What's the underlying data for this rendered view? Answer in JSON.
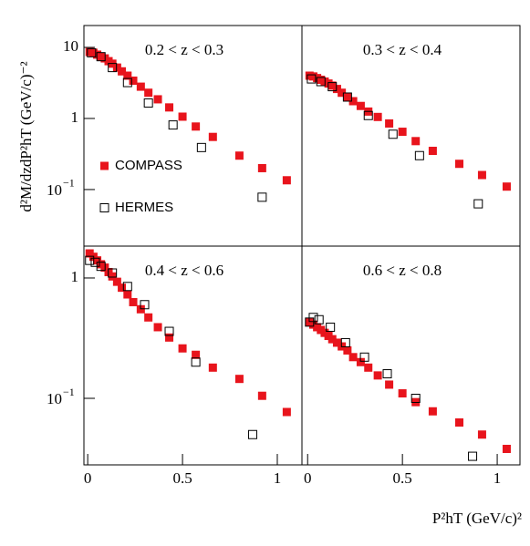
{
  "chart_data": [
    {
      "type": "scatter",
      "label": "0.2 < z < 0.3",
      "ylabel": "d²M/dzdP²hT (GeV/c)⁻²",
      "legend": true,
      "log_y": true,
      "xlim": [
        -0.02,
        1.13
      ],
      "ylim": [
        0.016,
        20.3
      ],
      "yticks": [
        10,
        1,
        {
          "value": 0.1,
          "label": "10",
          "exponent": "−1"
        }
      ],
      "series": [
        {
          "name": "COMPASS",
          "color": "#e8141c",
          "marker": "filled",
          "x": [
            0.01,
            0.03,
            0.05,
            0.07,
            0.09,
            0.11,
            0.13,
            0.155,
            0.18,
            0.21,
            0.24,
            0.28,
            0.32,
            0.37,
            0.43,
            0.5,
            0.57,
            0.66,
            0.8,
            0.92,
            1.05
          ],
          "values": [
            8.6,
            8.4,
            7.9,
            7.4,
            7.0,
            6.4,
            5.9,
            5.2,
            4.6,
            4.0,
            3.4,
            2.8,
            2.3,
            1.86,
            1.43,
            1.06,
            0.77,
            0.55,
            0.3,
            0.2,
            0.135
          ]
        },
        {
          "name": "HERMES",
          "color": "#000000",
          "marker": "open",
          "x": [
            0.02,
            0.07,
            0.13,
            0.21,
            0.32,
            0.45,
            0.6,
            0.92
          ],
          "values": [
            8.4,
            7.4,
            5.2,
            3.2,
            1.65,
            0.81,
            0.39,
            0.078
          ]
        }
      ]
    },
    {
      "type": "scatter",
      "label": "0.3 < z < 0.4",
      "log_y": true,
      "xlim": [
        -0.03,
        1.12
      ],
      "ylim": [
        0.016,
        20.3
      ],
      "series": [
        {
          "color": "#e8141c",
          "marker": "filled",
          "x": [
            0.01,
            0.03,
            0.05,
            0.07,
            0.09,
            0.11,
            0.13,
            0.155,
            0.18,
            0.21,
            0.24,
            0.28,
            0.32,
            0.37,
            0.43,
            0.5,
            0.57,
            0.66,
            0.8,
            0.92,
            1.05
          ],
          "values": [
            4.0,
            3.9,
            3.7,
            3.5,
            3.3,
            3.1,
            2.9,
            2.6,
            2.3,
            2.0,
            1.75,
            1.5,
            1.25,
            1.05,
            0.85,
            0.65,
            0.48,
            0.35,
            0.23,
            0.16,
            0.11
          ]
        },
        {
          "color": "#000000",
          "marker": "open",
          "x": [
            0.02,
            0.07,
            0.13,
            0.21,
            0.32,
            0.45,
            0.59,
            0.9
          ],
          "values": [
            3.6,
            3.3,
            2.8,
            2.0,
            1.1,
            0.6,
            0.3,
            0.063
          ]
        }
      ]
    },
    {
      "type": "scatter",
      "label": "0.4 < z < 0.6",
      "log_y": true,
      "xlim": [
        -0.02,
        1.13
      ],
      "ylim": [
        0.028,
        1.84
      ],
      "xticks": [
        0,
        0.5,
        1
      ],
      "yticks": [
        1,
        {
          "value": 0.1,
          "label": "10",
          "exponent": "−1"
        }
      ],
      "series": [
        {
          "color": "#e8141c",
          "marker": "filled",
          "x": [
            0.01,
            0.03,
            0.05,
            0.07,
            0.09,
            0.11,
            0.13,
            0.155,
            0.18,
            0.21,
            0.24,
            0.28,
            0.32,
            0.37,
            0.43,
            0.5,
            0.57,
            0.66,
            0.8,
            0.92,
            1.05
          ],
          "values": [
            1.6,
            1.5,
            1.4,
            1.3,
            1.22,
            1.12,
            1.03,
            0.93,
            0.83,
            0.73,
            0.63,
            0.55,
            0.47,
            0.39,
            0.32,
            0.26,
            0.23,
            0.18,
            0.145,
            0.105,
            0.077
          ]
        },
        {
          "color": "#000000",
          "marker": "open",
          "x": [
            0.01,
            0.04,
            0.07,
            0.13,
            0.21,
            0.3,
            0.43,
            0.57,
            0.87
          ],
          "values": [
            1.4,
            1.35,
            1.25,
            1.1,
            0.85,
            0.6,
            0.36,
            0.2,
            0.05
          ]
        }
      ]
    },
    {
      "type": "scatter",
      "label": "0.6 < z < 0.8",
      "xlabel": "P²hT (GeV/c)²",
      "log_y": true,
      "xlim": [
        -0.03,
        1.12
      ],
      "ylim": [
        0.028,
        1.84
      ],
      "xticks": [
        0,
        0.5,
        1
      ],
      "series": [
        {
          "color": "#e8141c",
          "marker": "filled",
          "x": [
            0.01,
            0.03,
            0.05,
            0.07,
            0.09,
            0.11,
            0.13,
            0.155,
            0.18,
            0.21,
            0.24,
            0.28,
            0.32,
            0.37,
            0.43,
            0.5,
            0.57,
            0.66,
            0.8,
            0.92,
            1.05
          ],
          "values": [
            0.43,
            0.41,
            0.39,
            0.37,
            0.35,
            0.33,
            0.31,
            0.29,
            0.27,
            0.25,
            0.22,
            0.2,
            0.18,
            0.155,
            0.13,
            0.11,
            0.093,
            0.078,
            0.063,
            0.05,
            0.038
          ]
        },
        {
          "color": "#000000",
          "marker": "open",
          "x": [
            0.01,
            0.03,
            0.06,
            0.12,
            0.2,
            0.3,
            0.42,
            0.57,
            0.87
          ],
          "values": [
            0.43,
            0.47,
            0.45,
            0.39,
            0.29,
            0.22,
            0.16,
            0.1,
            0.033
          ]
        }
      ]
    }
  ]
}
